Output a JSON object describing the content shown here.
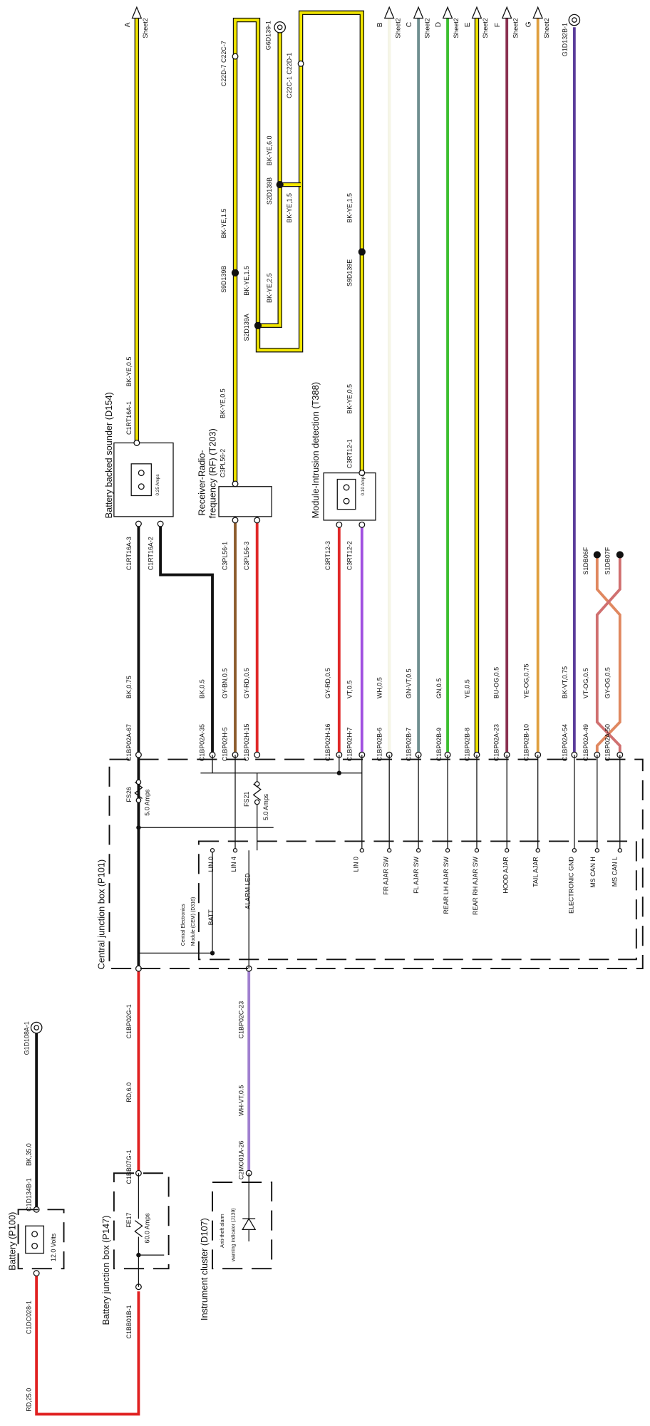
{
  "sheet_refs": [
    {
      "id": "A",
      "sheet": "Sheet2"
    },
    {
      "id": "B",
      "sheet": "Sheet2"
    },
    {
      "id": "C",
      "sheet": "Sheet2"
    },
    {
      "id": "D",
      "sheet": "Sheet2"
    },
    {
      "id": "E",
      "sheet": "Sheet2"
    },
    {
      "id": "F",
      "sheet": "Sheet2"
    },
    {
      "id": "G",
      "sheet": "Sheet2"
    }
  ],
  "grounds": [
    "G6D139-1",
    "G1D132B-1",
    "G1D108A-1"
  ],
  "splice_wiring": [
    "C22D-7 C22C-7",
    "C22C-1 C22D-1",
    "S2D139B",
    "BK-YE,6.0",
    "BK-YE,1.5",
    "S9D139B",
    "BK-YE,1.5",
    "S2D139A",
    "BK-YE,2.5",
    "BK-YE,1.5",
    "S9D139E",
    "BK-YE,1.5"
  ],
  "sounder": {
    "title": "Battery backed sounder (D154)",
    "fuse": "0.25 Amps",
    "pin_in": "C1RT16A-1",
    "wire_in": "BK-YE,0.5",
    "pin_a": "C1RT16A-3",
    "pin_b": "C1RT16A-2"
  },
  "receiver": {
    "title_1": "Receiver-Radio-",
    "title_2": "frequency (RF) (T203)",
    "pin_in": "C3PL56-2",
    "wire_in": "BK-YE,0.5",
    "pin_a": "C3PL56-1",
    "pin_b": "C3PL56-3"
  },
  "intrusion": {
    "title": "Module-Intrusion detection (T388)",
    "fuse": "0.10 Amps",
    "pin_in": "C3RT12-1",
    "wire_in": "BK-YE,0.5",
    "pin_a": "C3RT12-3",
    "pin_b": "C3RT12-2"
  },
  "harness": [
    {
      "pin": "C1BP02A-67",
      "wire": "BK,0.75"
    },
    {
      "pin": "C1BP02A-35",
      "wire": "BK,0.5"
    },
    {
      "pin": "C1BP02H-5",
      "wire": "GY-BN,0.5"
    },
    {
      "pin": "C1BP02H-15",
      "wire": "GY-RD,0.5"
    },
    {
      "pin": "C1BP02H-16",
      "wire": "GY-RD,0.5"
    },
    {
      "pin": "C1BP02H-7",
      "wire": "VT,0.5"
    },
    {
      "pin": "C1BP02B-6",
      "wire": "WH,0.5"
    },
    {
      "pin": "C1BP02B-7",
      "wire": "GN-VT,0.5"
    },
    {
      "pin": "C1BP02B-9",
      "wire": "GN,0.5"
    },
    {
      "pin": "C1BP02B-8",
      "wire": "YE,0.5"
    },
    {
      "pin": "C1BP02A-23",
      "wire": "BU-OG,0.5"
    },
    {
      "pin": "C1BP02B-10",
      "wire": "YE-OG,0.75"
    },
    {
      "pin": "C1BP02A-54",
      "wire": "BK-VT,0.75"
    },
    {
      "pin": "C1BP02A-49",
      "wire": "VT-OG,0.5"
    },
    {
      "pin": "C1BP02A-50",
      "wire": "GY-OG,0.5"
    }
  ],
  "can_splices": [
    "S1DB06F",
    "S1DB07F"
  ],
  "cjb": {
    "title": "Central junction box (P101)",
    "fuses": [
      {
        "name": "FS26",
        "rating": "5.0 Amps"
      },
      {
        "name": "FS21",
        "rating": "5.0 Amps"
      }
    ],
    "cem_1": "Central Electronics",
    "cem_2": "Module (CEM) (D316)",
    "pins": [
      "LIN 0",
      "LIN 4",
      "BATT",
      "ALARM LED",
      "LIN 0",
      "FR AJAR SW",
      "FL AJAR SW",
      "REAR LH AJAR SW",
      "REAR RH AJAR SW",
      "HOOD AJAR",
      "TAIL AJAR",
      "ELECTRONIC GND",
      "MS CAN H",
      "MS CAN L"
    ]
  },
  "lower": [
    "C1BP02G-1",
    "RD,6.0",
    "C1BB07G-1",
    "C1BP02C-23",
    "WH-VT,0.5",
    "C2MO01A-26",
    "C1D134B-1",
    "BK,35.0",
    "C1DC028-1",
    "C1BB01B-1",
    "RD,25.0"
  ],
  "battery": {
    "title": "Battery (P100)",
    "voltage": "12.0 Volts"
  },
  "bjb": {
    "title": "Battery junction box (P147)",
    "fuse": "FE17",
    "rating": "60.0 Amps"
  },
  "cluster": {
    "title": "Instrument cluster (D107)",
    "ind_1": "Anti-theft alarm",
    "ind_2": "warning indicator (J139)"
  }
}
